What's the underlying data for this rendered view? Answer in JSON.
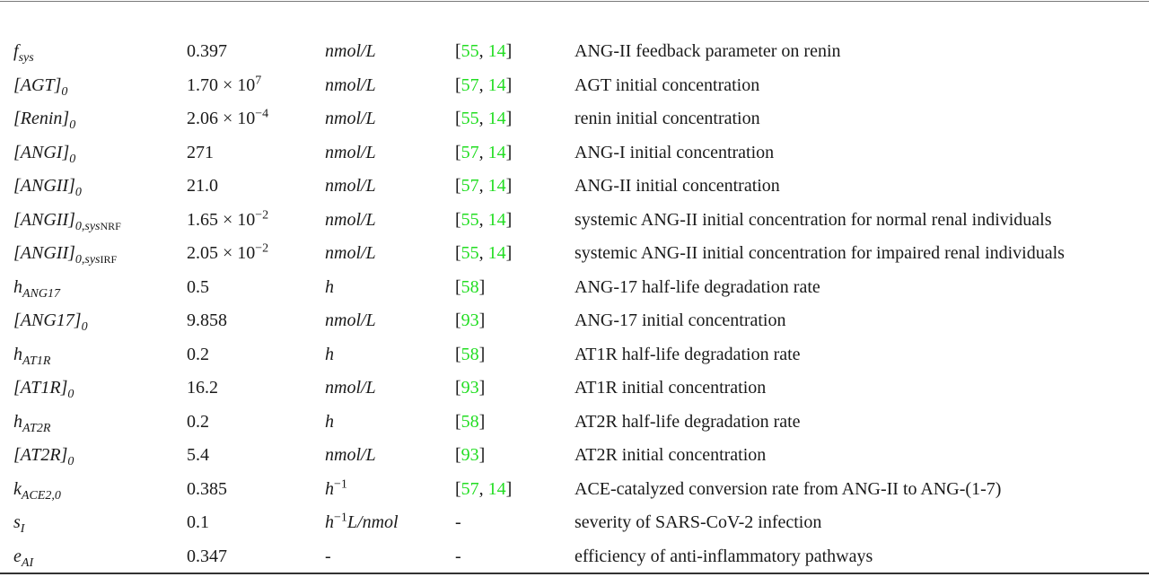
{
  "rows": [
    {
      "sym": {
        "base": "f",
        "sub": "sys"
      },
      "value": "0.397",
      "unit": {
        "text": "nmol/L"
      },
      "refs": [
        "55",
        "14"
      ],
      "desc": "ANG-II feedback parameter on renin"
    },
    {
      "sym": {
        "base": "[AGT]",
        "sub": "0"
      },
      "value": {
        "mant": "1.70 × 10",
        "exp": "7"
      },
      "unit": {
        "text": "nmol/L"
      },
      "refs": [
        "57",
        "14"
      ],
      "desc": "AGT initial concentration"
    },
    {
      "sym": {
        "base": "[Renin]",
        "sub": "0"
      },
      "value": {
        "mant": "2.06 × 10",
        "exp": "−4"
      },
      "unit": {
        "text": "nmol/L"
      },
      "refs": [
        "55",
        "14"
      ],
      "desc": "renin initial concentration"
    },
    {
      "sym": {
        "base": "[ANGI]",
        "sub": "0"
      },
      "value": "271",
      "unit": {
        "text": "nmol/L"
      },
      "refs": [
        "57",
        "14"
      ],
      "desc": "ANG-I initial concentration"
    },
    {
      "sym": {
        "base": "[ANGII]",
        "sub": "0"
      },
      "value": "21.0",
      "unit": {
        "text": "nmol/L"
      },
      "refs": [
        "57",
        "14"
      ],
      "desc": "ANG-II initial concentration"
    },
    {
      "sym": {
        "base": "[ANGII]",
        "sub": "0,sys",
        "sub2": "NRF"
      },
      "value": {
        "mant": "1.65 × 10",
        "exp": "−2"
      },
      "unit": {
        "text": "nmol/L"
      },
      "refs": [
        "55",
        "14"
      ],
      "desc": "systemic ANG-II initial concentration for normal renal individuals"
    },
    {
      "sym": {
        "base": "[ANGII]",
        "sub": "0,sys",
        "sub2": "IRF"
      },
      "value": {
        "mant": "2.05 × 10",
        "exp": "−2"
      },
      "unit": {
        "text": "nmol/L"
      },
      "refs": [
        "55",
        "14"
      ],
      "desc": "systemic ANG-II initial concentration for impaired renal individuals"
    },
    {
      "sym": {
        "base": "h",
        "sub": "ANG17"
      },
      "value": "0.5",
      "unit": {
        "text": "h"
      },
      "refs": [
        "58"
      ],
      "desc": "ANG-17 half-life degradation rate"
    },
    {
      "sym": {
        "base": "[ANG17]",
        "sub": "0"
      },
      "value": "9.858",
      "unit": {
        "text": "nmol/L"
      },
      "refs": [
        "93"
      ],
      "desc": "ANG-17 initial concentration"
    },
    {
      "sym": {
        "base": "h",
        "sub": "AT1R"
      },
      "value": "0.2",
      "unit": {
        "text": "h"
      },
      "refs": [
        "58"
      ],
      "desc": "AT1R half-life degradation rate"
    },
    {
      "sym": {
        "base": "[AT1R]",
        "sub": "0"
      },
      "value": "16.2",
      "unit": {
        "text": "nmol/L"
      },
      "refs": [
        "93"
      ],
      "desc": "AT1R initial concentration"
    },
    {
      "sym": {
        "base": "h",
        "sub": "AT2R"
      },
      "value": "0.2",
      "unit": {
        "text": "h"
      },
      "refs": [
        "58"
      ],
      "desc": "AT2R half-life degradation rate"
    },
    {
      "sym": {
        "base": "[AT2R]",
        "sub": "0"
      },
      "value": "5.4",
      "unit": {
        "text": "nmol/L"
      },
      "refs": [
        "93"
      ],
      "desc": "AT2R initial concentration"
    },
    {
      "sym": {
        "base": "k",
        "sub": "ACE2,0"
      },
      "value": "0.385",
      "unit": {
        "text": "h",
        "sup": "−1"
      },
      "refs": [
        "57",
        "14"
      ],
      "desc": "ACE-catalyzed conversion rate from ANG-II to ANG-(1-7)"
    },
    {
      "sym": {
        "base": "s",
        "sub": "I"
      },
      "value": "0.1",
      "unit": {
        "text": "h",
        "sup": "−1",
        "after": "L/nmol"
      },
      "refs": [],
      "ref_text": "-",
      "desc": "severity of SARS-CoV-2 infection"
    },
    {
      "sym": {
        "base": "e",
        "sub": "AI"
      },
      "value": "0.347",
      "unit": {
        "text": "-",
        "plain": true
      },
      "refs": [],
      "ref_text": "-",
      "desc": "efficiency of anti-inflammatory pathways"
    }
  ],
  "colors": {
    "citation": "#22dd22",
    "text": "#1a1a1a",
    "rule": "#333333"
  }
}
